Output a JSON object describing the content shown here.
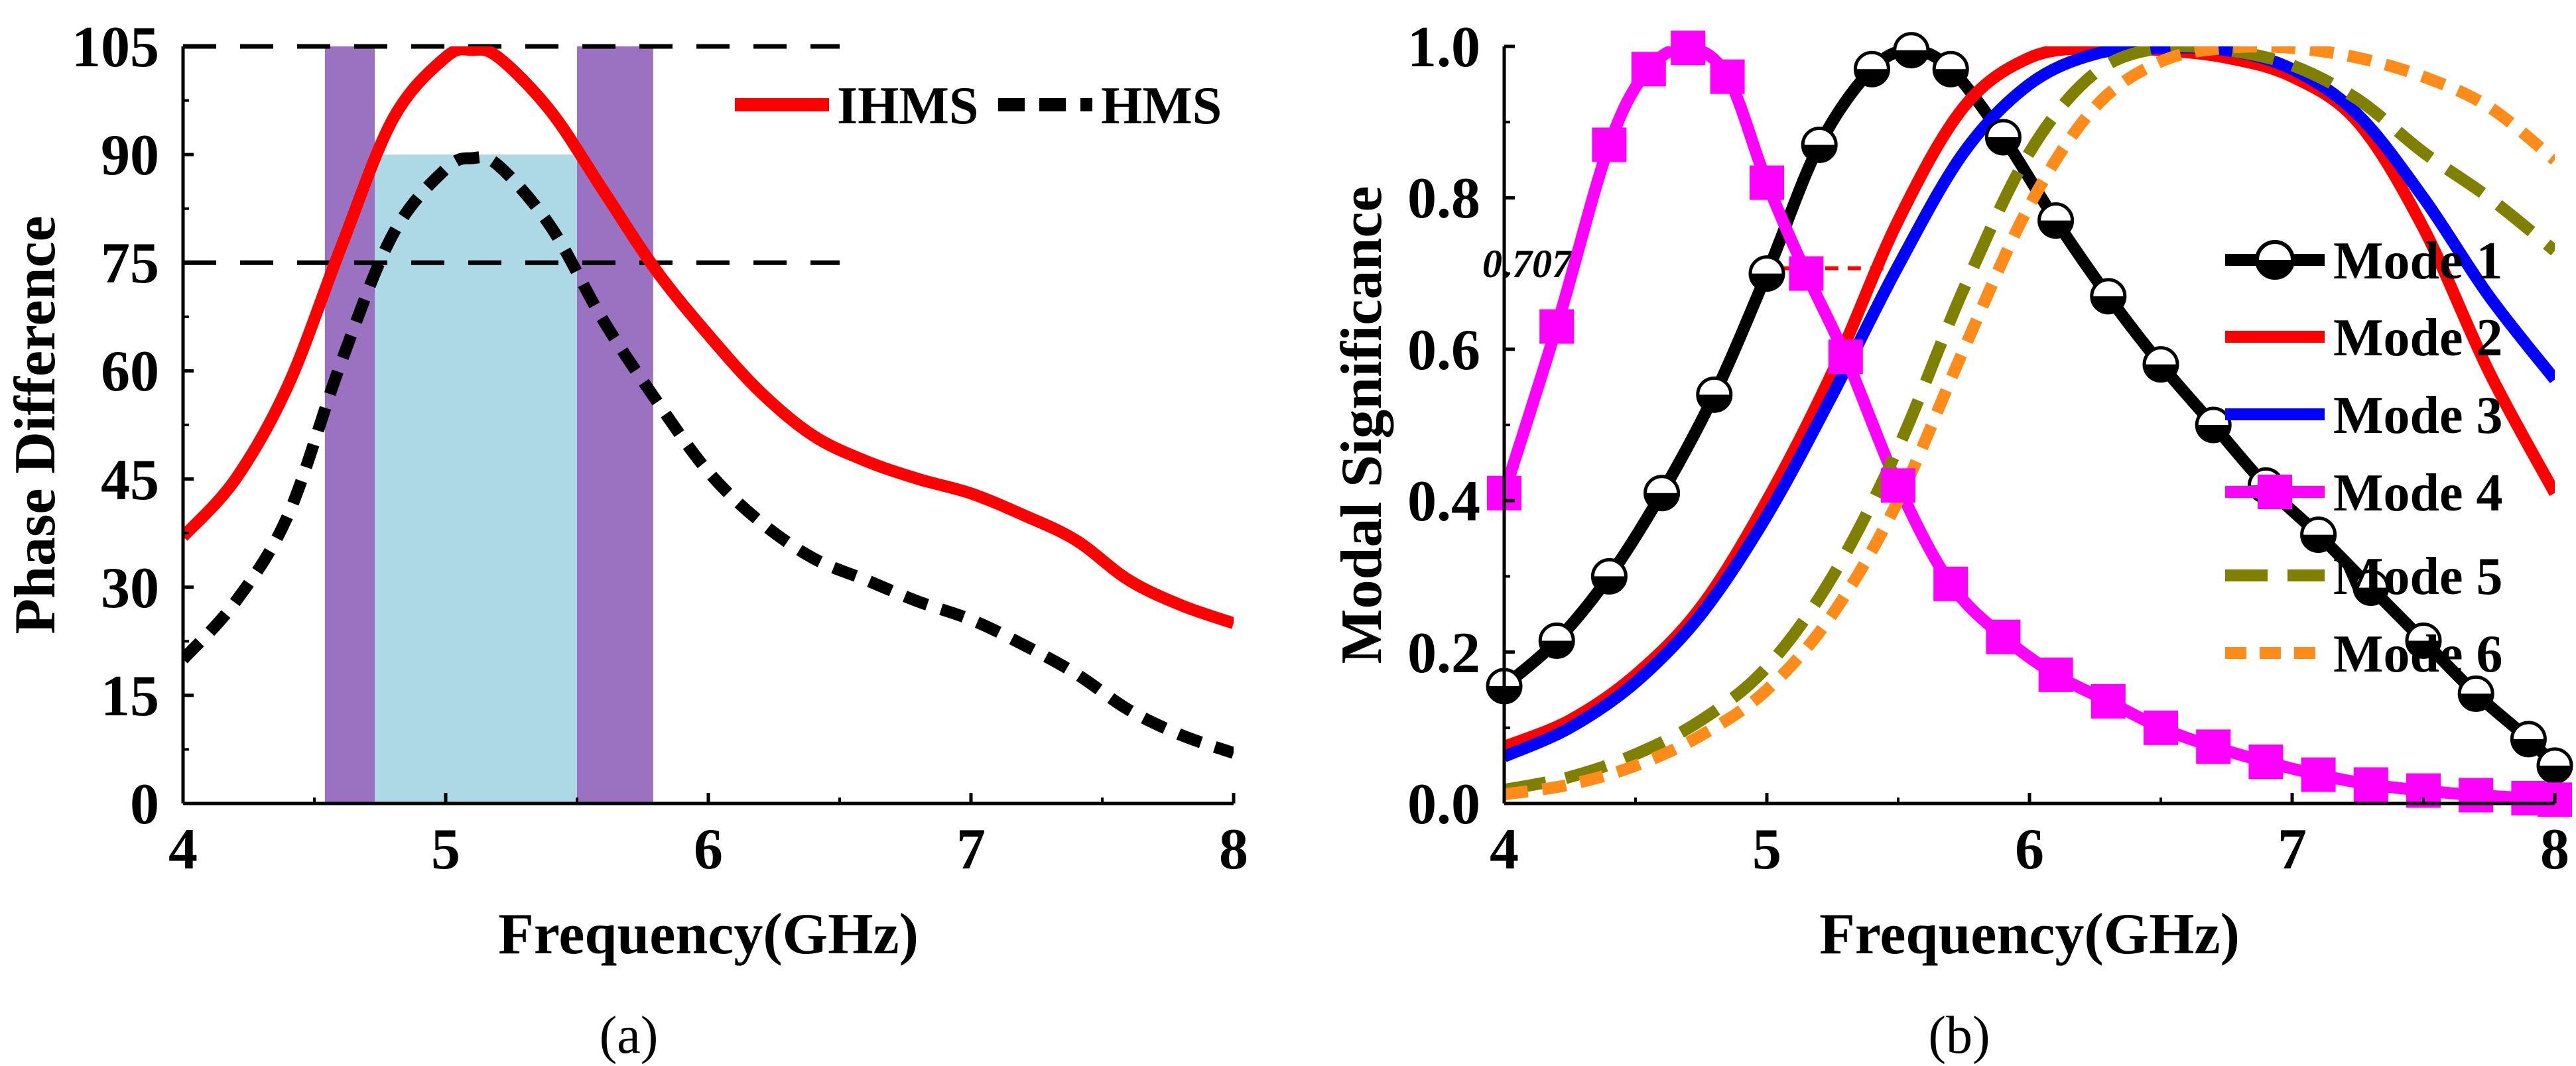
{
  "chart_data": [
    {
      "type": "line",
      "caption": "(a)",
      "xlabel": "Frequency(GHz)",
      "ylabel": "Phase Difference",
      "xlim": [
        4,
        8
      ],
      "ylim": [
        0,
        105
      ],
      "xticks": [
        "4",
        "5",
        "6",
        "7",
        "8"
      ],
      "yticks": [
        "0",
        "15",
        "30",
        "45",
        "60",
        "75",
        "90",
        "105"
      ],
      "legend_position": "top-right",
      "reference_lines": [
        105,
        75
      ],
      "shaded_bands": [
        {
          "x0": 4.54,
          "x1": 4.73,
          "y0": 0,
          "y1": 105,
          "color": "#9b72c2"
        },
        {
          "x0": 5.5,
          "x1": 5.79,
          "y0": 0,
          "y1": 105,
          "color": "#9b72c2"
        },
        {
          "x0": 4.73,
          "x1": 5.5,
          "y0": 0,
          "y1": 90,
          "color": "#add8e6"
        }
      ],
      "series": [
        {
          "name": "IHMS",
          "color": "#ff0000",
          "dash": "solid",
          "x": [
            4.0,
            4.2,
            4.4,
            4.6,
            4.8,
            5.0,
            5.1,
            5.2,
            5.4,
            5.6,
            5.8,
            6.0,
            6.2,
            6.4,
            6.6,
            6.8,
            7.0,
            7.2,
            7.4,
            7.6,
            7.8,
            8.0
          ],
          "y": [
            37,
            45,
            58,
            77,
            95,
            103.5,
            104.5,
            103.5,
            96,
            85,
            74,
            65,
            57,
            51,
            47.5,
            45,
            43,
            40,
            36.5,
            31,
            27.5,
            25
          ]
        },
        {
          "name": "HMS",
          "color": "#000000",
          "dash": "dashed",
          "x": [
            4.0,
            4.2,
            4.4,
            4.6,
            4.8,
            5.0,
            5.1,
            5.2,
            5.4,
            5.6,
            5.8,
            6.0,
            6.2,
            6.4,
            6.6,
            6.8,
            7.0,
            7.2,
            7.4,
            7.6,
            7.8,
            8.0
          ],
          "y": [
            20,
            28,
            40,
            61,
            79,
            88,
            89.5,
            88.5,
            80,
            67,
            56,
            46,
            39,
            34,
            31,
            28,
            25.5,
            22,
            18,
            13,
            9.5,
            7
          ]
        }
      ]
    },
    {
      "type": "line",
      "caption": "(b)",
      "xlabel": "Frequency(GHz)",
      "ylabel": "Modal Significance",
      "xlim": [
        4,
        8
      ],
      "ylim": [
        0,
        1.0
      ],
      "xticks": [
        "4",
        "5",
        "6",
        "7",
        "8"
      ],
      "yticks": [
        "0.0",
        "0.2",
        "0.4",
        "0.6",
        "0.8",
        "1.0"
      ],
      "legend_position": "right",
      "annotation": {
        "text": "0.707",
        "y": 0.707,
        "x0": 5.05,
        "x1": 5.5
      },
      "series": [
        {
          "name": "Mode 1",
          "color": "#000000",
          "dash": "solid",
          "marker": "half-circle",
          "x": [
            4.0,
            4.2,
            4.4,
            4.6,
            4.8,
            5.0,
            5.2,
            5.4,
            5.55,
            5.7,
            5.9,
            6.1,
            6.3,
            6.5,
            6.7,
            6.9,
            7.1,
            7.3,
            7.5,
            7.7,
            7.9,
            8.0
          ],
          "y": [
            0.155,
            0.215,
            0.3,
            0.41,
            0.54,
            0.7,
            0.87,
            0.97,
            0.995,
            0.97,
            0.88,
            0.77,
            0.67,
            0.58,
            0.5,
            0.42,
            0.355,
            0.285,
            0.215,
            0.145,
            0.085,
            0.05
          ]
        },
        {
          "name": "Mode 2",
          "color": "#ff0000",
          "dash": "solid",
          "marker": "none",
          "x": [
            4.0,
            4.25,
            4.5,
            4.75,
            5.0,
            5.25,
            5.5,
            5.75,
            6.0,
            6.25,
            6.5,
            6.75,
            7.0,
            7.25,
            7.5,
            7.75,
            8.0
          ],
          "y": [
            0.075,
            0.11,
            0.17,
            0.26,
            0.4,
            0.57,
            0.77,
            0.92,
            0.985,
            0.998,
            0.995,
            0.985,
            0.96,
            0.9,
            0.76,
            0.57,
            0.41
          ]
        },
        {
          "name": "Mode 3",
          "color": "#0000ff",
          "dash": "solid",
          "marker": "none",
          "x": [
            4.0,
            4.25,
            4.5,
            4.75,
            5.0,
            5.25,
            5.5,
            5.75,
            6.0,
            6.25,
            6.5,
            6.75,
            7.0,
            7.25,
            7.5,
            7.75,
            8.0
          ],
          "y": [
            0.062,
            0.1,
            0.16,
            0.25,
            0.38,
            0.54,
            0.71,
            0.86,
            0.95,
            0.99,
            0.998,
            0.995,
            0.97,
            0.91,
            0.8,
            0.67,
            0.56
          ]
        },
        {
          "name": "Mode 4",
          "color": "#ff00ff",
          "dash": "solid",
          "marker": "square",
          "x": [
            4.0,
            4.2,
            4.4,
            4.55,
            4.7,
            4.85,
            5.0,
            5.15,
            5.3,
            5.5,
            5.7,
            5.9,
            6.1,
            6.3,
            6.5,
            6.7,
            6.9,
            7.1,
            7.3,
            7.5,
            7.7,
            7.9,
            8.0
          ],
          "y": [
            0.41,
            0.63,
            0.87,
            0.97,
            0.998,
            0.96,
            0.82,
            0.7,
            0.59,
            0.42,
            0.29,
            0.22,
            0.17,
            0.135,
            0.1,
            0.075,
            0.055,
            0.038,
            0.025,
            0.017,
            0.011,
            0.007,
            0.005
          ]
        },
        {
          "name": "Mode 5",
          "color": "#808000",
          "dash": "long-dash",
          "marker": "none",
          "x": [
            4.0,
            4.25,
            4.5,
            4.75,
            5.0,
            5.25,
            5.5,
            5.75,
            6.0,
            6.25,
            6.5,
            6.75,
            7.0,
            7.25,
            7.5,
            7.75,
            8.0
          ],
          "y": [
            0.018,
            0.035,
            0.065,
            0.11,
            0.18,
            0.3,
            0.47,
            0.68,
            0.86,
            0.965,
            0.998,
            0.995,
            0.975,
            0.93,
            0.86,
            0.8,
            0.73
          ]
        },
        {
          "name": "Mode 6",
          "color": "#ff8c1a",
          "dash": "dashed",
          "marker": "none",
          "x": [
            4.0,
            4.25,
            4.5,
            4.75,
            5.0,
            5.25,
            5.5,
            5.75,
            6.0,
            6.25,
            6.5,
            6.75,
            7.0,
            7.25,
            7.5,
            7.75,
            8.0
          ],
          "y": [
            0.012,
            0.025,
            0.05,
            0.09,
            0.15,
            0.25,
            0.4,
            0.6,
            0.79,
            0.92,
            0.98,
            0.998,
            0.998,
            0.985,
            0.96,
            0.92,
            0.85
          ]
        }
      ]
    }
  ]
}
